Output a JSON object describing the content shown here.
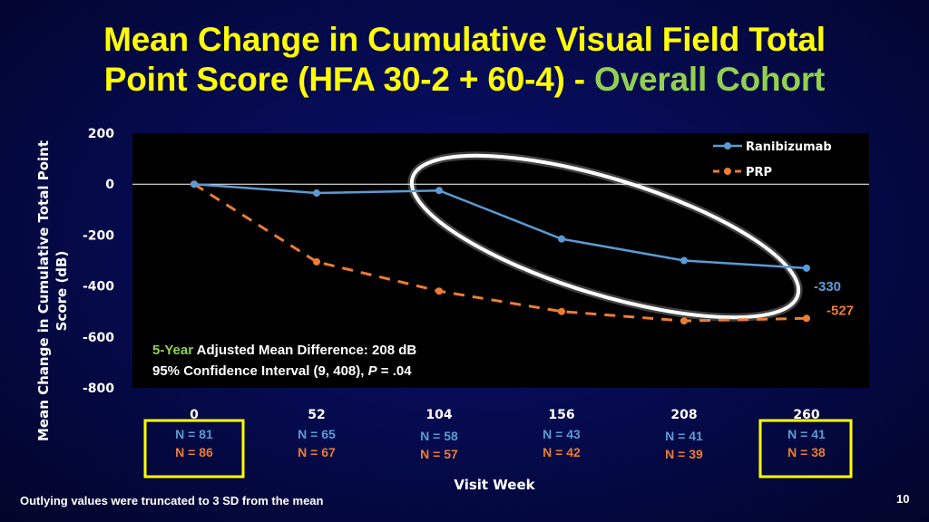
{
  "title": {
    "line1": "Mean Change in Cumulative Visual Field Total",
    "line2_main": "Point Score (HFA 30-2 + 60-4)",
    "line2_sep": " - ",
    "line2_highlight": "Overall Cohort"
  },
  "footnote": "Outlying values were truncated to 3 SD from the mean",
  "page_number": "10",
  "colors": {
    "title": "#ffff00",
    "highlight": "#92d050",
    "ranibizumab": "#5b9bd5",
    "prp": "#ed7d31",
    "background": "#050a4a",
    "box": "#ffff00"
  },
  "annotation": {
    "line1_highlight": "5-Year",
    "line1_rest": " Adjusted Mean Difference: 208 dB",
    "line2_prefix": "95% Confidence Interval (9, 408), ",
    "line2_p": "P",
    "line2_suffix": " = .04"
  },
  "chart_data": {
    "type": "line",
    "xlabel": "Visit Week",
    "ylabel": "Mean Change in Cumulative Total Point Score (dB)",
    "categories": [
      "0",
      "52",
      "104",
      "156",
      "208",
      "260"
    ],
    "ylim": [
      -800,
      200
    ],
    "yticks": [
      200,
      0,
      -200,
      -400,
      -600,
      -800
    ],
    "legend_position": "top-right",
    "series": [
      {
        "name": "Ranibizumab",
        "style": "solid",
        "values": [
          0,
          -35,
          -25,
          -215,
          -300,
          -330
        ],
        "end_label": "-330",
        "n_counts": [
          "N = 81",
          "N = 65",
          "N = 58",
          "N = 43",
          "N = 41",
          "N = 41"
        ]
      },
      {
        "name": "PRP",
        "style": "dashed",
        "values": [
          0,
          -305,
          -420,
          -500,
          -537,
          -527
        ],
        "end_label": "-527",
        "n_counts": [
          "N = 86",
          "N = 67",
          "N = 57",
          "N = 42",
          "N = 39",
          "N = 38"
        ]
      }
    ]
  }
}
